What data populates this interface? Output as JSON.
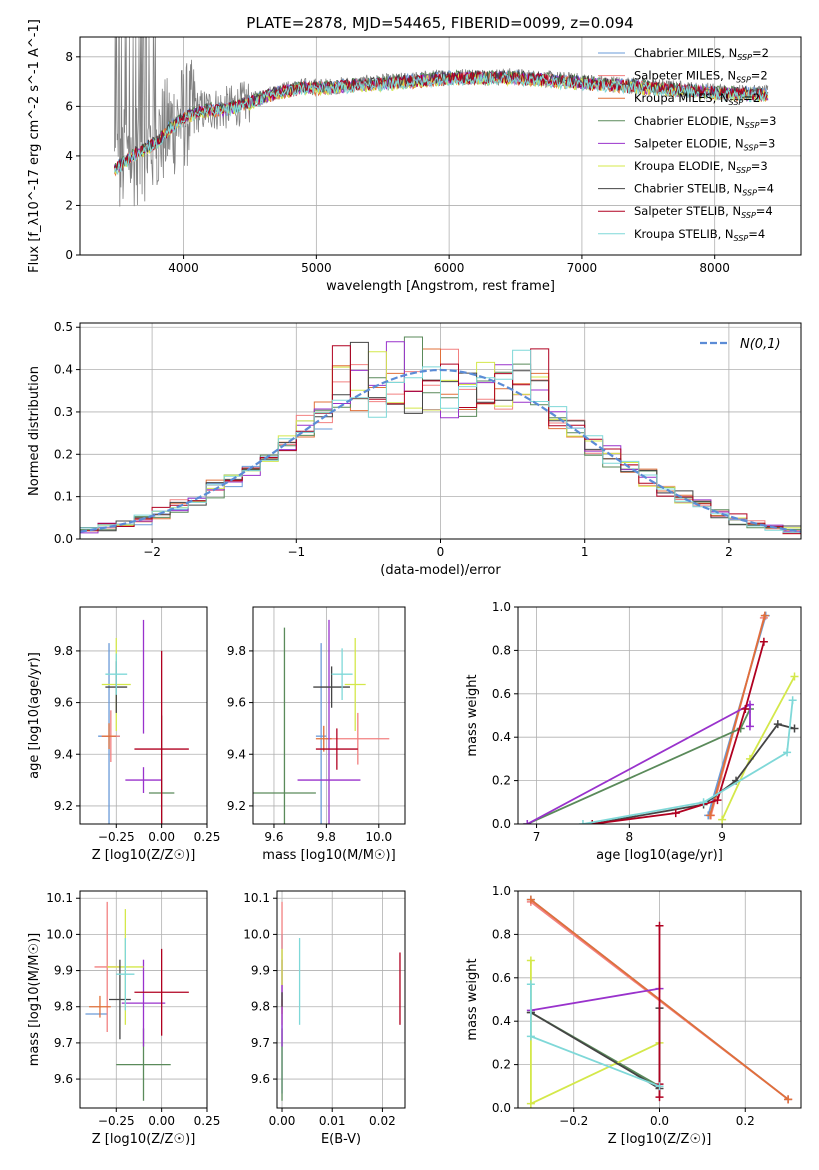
{
  "figure": {
    "title": "PLATE=2878, MJD=54465, FIBERID=0099, z=0.094"
  },
  "models": [
    {
      "name": "Chabrier MILES",
      "nssp": "2",
      "color": "#6a9bd8"
    },
    {
      "name": "Salpeter MILES",
      "nssp": "2",
      "color": "#f28080"
    },
    {
      "name": "Kroupa MILES",
      "nssp": "2",
      "color": "#e0703a"
    },
    {
      "name": "Chabrier ELODIE",
      "nssp": "3",
      "color": "#5a8a5a"
    },
    {
      "name": "Salpeter ELODIE",
      "nssp": "3",
      "color": "#9932cc"
    },
    {
      "name": "Kroupa ELODIE",
      "nssp": "3",
      "color": "#d4e84a"
    },
    {
      "name": "Chabrier STELIB",
      "nssp": "4",
      "color": "#444444"
    },
    {
      "name": "Salpeter STELIB",
      "nssp": "4",
      "color": "#b00020"
    },
    {
      "name": "Kroupa STELIB",
      "nssp": "4",
      "color": "#7fd8d8"
    }
  ],
  "chart_data": [
    {
      "id": "spectrum",
      "type": "line",
      "xlabel": "wavelength [Angstrom, rest frame]",
      "ylabel": "Flux [f_λ10^-17 erg cm^-2 s^-1 A^-1]",
      "xlim": [
        3220,
        8650
      ],
      "ylim": [
        0,
        8.8
      ],
      "xticks": [
        4000,
        5000,
        6000,
        7000,
        8000
      ],
      "yticks": [
        0,
        2,
        4,
        6,
        8
      ],
      "legend_position": "right",
      "data_range": [
        3480,
        8400
      ],
      "data_color": "#808080",
      "continuum": {
        "x": [
          3480,
          3600,
          3700,
          3800,
          3900,
          4000,
          4100,
          4200,
          4300,
          4500,
          4700,
          4900,
          5100,
          5300,
          5600,
          6000,
          6500,
          7000,
          7500,
          8000,
          8400
        ],
        "y": [
          3.5,
          4.0,
          4.3,
          4.6,
          5.2,
          5.6,
          5.8,
          5.9,
          5.9,
          6.2,
          6.6,
          6.8,
          6.8,
          6.9,
          7.0,
          7.2,
          7.2,
          7.0,
          6.8,
          6.6,
          6.5
        ]
      }
    },
    {
      "id": "residuals",
      "type": "histogram",
      "xlabel": "(data-model)/error",
      "ylabel": "Normed distribution",
      "xlim": [
        -2.5,
        2.5
      ],
      "ylim": [
        0,
        0.51
      ],
      "xticks": [
        -2,
        -1,
        0,
        1,
        2
      ],
      "yticks": [
        0.0,
        0.1,
        0.2,
        0.3,
        0.4,
        0.5
      ],
      "bin_width": 0.125,
      "legend_label": "N(0,1)",
      "legend_position": "top-right",
      "gaussian_color": "#5b8cd6",
      "peak_bins": [
        0.4,
        0.43,
        0.34,
        0.36,
        0.42,
        0.38,
        0.48,
        0.36,
        0.34,
        0.32,
        0.38
      ]
    },
    {
      "id": "age_vs_Z",
      "type": "errorbar",
      "xlabel": "Z [log10(Z/Z☉)]",
      "ylabel": "age [log10(age/yr)]",
      "xlim": [
        -0.45,
        0.25
      ],
      "ylim": [
        9.13,
        9.97
      ],
      "xticks": [
        -0.25,
        0.0,
        0.25
      ],
      "yticks": [
        9.2,
        9.4,
        9.6,
        9.8
      ],
      "points": [
        {
          "x": -0.29,
          "y": 9.47,
          "xerr": 0.06,
          "yerr": 0.36,
          "c": 0
        },
        {
          "x": -0.28,
          "y": 9.47,
          "xerr": 0.05,
          "yerr": 0.1,
          "c": 1
        },
        {
          "x": -0.29,
          "y": 9.47,
          "xerr": 0.04,
          "yerr": 0.05,
          "c": 2
        },
        {
          "x": 0.0,
          "y": 9.25,
          "xerr": 0.07,
          "yerr": 0.3,
          "c": 3
        },
        {
          "x": -0.1,
          "y": 9.3,
          "xerr": 0.1,
          "yerr": 0.05,
          "c": 4
        },
        {
          "x": -0.1,
          "y": 9.7,
          "xerr": 0.0,
          "yerr": 0.22,
          "c": 4
        },
        {
          "x": -0.25,
          "y": 9.67,
          "xerr": 0.08,
          "yerr": 0.18,
          "c": 5
        },
        {
          "x": -0.25,
          "y": 9.66,
          "xerr": 0.06,
          "yerr": 0.1,
          "c": 6
        },
        {
          "x": 0.0,
          "y": 9.42,
          "xerr": 0.15,
          "yerr": 0.38,
          "c": 7
        },
        {
          "x": -0.25,
          "y": 9.71,
          "xerr": 0.06,
          "yerr": 0.08,
          "c": 8
        }
      ]
    },
    {
      "id": "age_vs_mass",
      "type": "errorbar",
      "xlabel": "mass [log10(M/M☉)]",
      "ylabel": "",
      "xlim": [
        9.52,
        10.1
      ],
      "ylim": [
        9.13,
        9.97
      ],
      "xticks": [
        9.6,
        9.8,
        10.0
      ],
      "yticks": [
        9.2,
        9.4,
        9.6,
        9.8
      ],
      "points": [
        {
          "x": 9.78,
          "y": 9.47,
          "xerr": 0.02,
          "yerr": 0.36,
          "c": 0
        },
        {
          "x": 9.92,
          "y": 9.46,
          "xerr": 0.12,
          "yerr": 0.1,
          "c": 1
        },
        {
          "x": 9.79,
          "y": 9.46,
          "xerr": 0.03,
          "yerr": 0.05,
          "c": 2
        },
        {
          "x": 9.64,
          "y": 9.25,
          "xerr": 0.12,
          "yerr": 0.64,
          "c": 3
        },
        {
          "x": 9.81,
          "y": 9.3,
          "xerr": 0.12,
          "yerr": 0.62,
          "c": 4
        },
        {
          "x": 9.91,
          "y": 9.67,
          "xerr": 0.04,
          "yerr": 0.18,
          "c": 5
        },
        {
          "x": 9.82,
          "y": 9.66,
          "xerr": 0.07,
          "yerr": 0.08,
          "c": 6
        },
        {
          "x": 9.84,
          "y": 9.42,
          "xerr": 0.08,
          "yerr": 0.08,
          "c": 7
        },
        {
          "x": 9.86,
          "y": 9.71,
          "xerr": 0.04,
          "yerr": 0.1,
          "c": 8
        }
      ]
    },
    {
      "id": "mass_weight_vs_age",
      "type": "line",
      "xlabel": "age [log10(age/yr)]",
      "ylabel": "mass weight",
      "xlim": [
        6.8,
        9.85
      ],
      "ylim": [
        0,
        1.0
      ],
      "xticks": [
        7,
        8,
        9
      ],
      "yticks": [
        0.0,
        0.2,
        0.4,
        0.6,
        0.8,
        1.0
      ],
      "series": [
        {
          "c": 0,
          "x": [
            8.85,
            9.47
          ],
          "y": [
            0.04,
            0.96
          ]
        },
        {
          "c": 1,
          "x": [
            8.88,
            9.45
          ],
          "y": [
            0.04,
            0.95
          ]
        },
        {
          "c": 2,
          "x": [
            8.87,
            9.46
          ],
          "y": [
            0.04,
            0.96
          ]
        },
        {
          "c": 3,
          "x": [
            6.9,
            9.2,
            9.3
          ],
          "y": [
            0.0,
            0.44,
            0.53
          ]
        },
        {
          "c": 4,
          "x": [
            6.9,
            9.3,
            9.3
          ],
          "y": [
            0.0,
            0.55,
            0.45
          ]
        },
        {
          "c": 5,
          "x": [
            9.0,
            9.3,
            9.78
          ],
          "y": [
            0.02,
            0.3,
            0.68
          ]
        },
        {
          "c": 6,
          "x": [
            7.6,
            8.8,
            9.15,
            9.6,
            9.78
          ],
          "y": [
            0.0,
            0.09,
            0.2,
            0.46,
            0.44
          ]
        },
        {
          "c": 7,
          "x": [
            7.6,
            8.5,
            8.95,
            9.25,
            9.45
          ],
          "y": [
            0.0,
            0.05,
            0.11,
            0.53,
            0.84
          ]
        },
        {
          "c": 8,
          "x": [
            7.5,
            8.8,
            9.7,
            9.76
          ],
          "y": [
            0.0,
            0.1,
            0.33,
            0.57
          ]
        }
      ]
    },
    {
      "id": "mass_vs_Z",
      "type": "errorbar",
      "xlabel": "Z [log10(Z/Z☉)]",
      "ylabel": "mass [log10(M/M☉)]",
      "xlim": [
        -0.45,
        0.25
      ],
      "ylim": [
        9.52,
        10.12
      ],
      "xticks": [
        -0.25,
        0.0,
        0.25
      ],
      "yticks": [
        9.6,
        9.7,
        9.8,
        9.9,
        10.0,
        10.1
      ],
      "points": [
        {
          "x": -0.36,
          "y": 9.78,
          "xerr": 0.06,
          "yerr": 0.0,
          "c": 0
        },
        {
          "x": -0.3,
          "y": 9.91,
          "xerr": 0.07,
          "yerr": 0.18,
          "c": 1
        },
        {
          "x": -0.34,
          "y": 9.8,
          "xerr": 0.06,
          "yerr": 0.03,
          "c": 2
        },
        {
          "x": -0.1,
          "y": 9.64,
          "xerr": 0.15,
          "yerr": 0.1,
          "c": 3
        },
        {
          "x": -0.1,
          "y": 9.81,
          "xerr": 0.12,
          "yerr": 0.12,
          "c": 4
        },
        {
          "x": -0.2,
          "y": 9.91,
          "xerr": 0.1,
          "yerr": 0.16,
          "c": 5
        },
        {
          "x": -0.23,
          "y": 9.82,
          "xerr": 0.06,
          "yerr": 0.11,
          "c": 6
        },
        {
          "x": 0.0,
          "y": 9.84,
          "xerr": 0.15,
          "yerr": 0.12,
          "c": 7
        },
        {
          "x": -0.2,
          "y": 9.89,
          "xerr": 0.05,
          "yerr": 0.1,
          "c": 8
        }
      ]
    },
    {
      "id": "mass_vs_ebv",
      "type": "errorbar",
      "xlabel": "E(B-V)",
      "ylabel": "",
      "xlim": [
        -0.001,
        0.0245
      ],
      "ylim": [
        9.52,
        10.12
      ],
      "xticks": [
        0.0,
        0.01,
        0.02
      ],
      "yticks": [
        9.6,
        9.7,
        9.8,
        9.9,
        10.0,
        10.1
      ],
      "points": [
        {
          "x": 0.0,
          "y": 9.78,
          "xerr": 0.0,
          "yerr": 0.22,
          "c": 0
        },
        {
          "x": 0.0,
          "y": 9.92,
          "xerr": 0.0,
          "yerr": 0.17,
          "c": 1
        },
        {
          "x": 0.0,
          "y": 9.8,
          "xerr": 0.0,
          "yerr": 0.02,
          "c": 2
        },
        {
          "x": 0.0,
          "y": 9.64,
          "xerr": 0.0,
          "yerr": 0.1,
          "c": 3
        },
        {
          "x": 0.0,
          "y": 9.81,
          "xerr": 0.0,
          "yerr": 0.12,
          "c": 4
        },
        {
          "x": 0.0,
          "y": 9.91,
          "xerr": 0.0,
          "yerr": 0.05,
          "c": 5
        },
        {
          "x": 0.0,
          "y": 9.82,
          "xerr": 0.0,
          "yerr": 0.02,
          "c": 6
        },
        {
          "x": 0.0235,
          "y": 9.85,
          "xerr": 0.0,
          "yerr": 0.1,
          "c": 7
        },
        {
          "x": 0.0035,
          "y": 9.87,
          "xerr": 0.0,
          "yerr": 0.12,
          "c": 8
        }
      ]
    },
    {
      "id": "mass_weight_vs_Z",
      "type": "line",
      "xlabel": "Z [log10(Z/Z☉)]",
      "ylabel": "mass weight",
      "xlim": [
        -0.33,
        0.33
      ],
      "ylim": [
        0,
        1.0
      ],
      "xticks": [
        -0.2,
        0.0,
        0.2
      ],
      "yticks": [
        0.0,
        0.2,
        0.4,
        0.6,
        0.8,
        1.0
      ],
      "series": [
        {
          "c": 0,
          "x": [
            -0.3,
            0.3
          ],
          "y": [
            0.96,
            0.04
          ]
        },
        {
          "c": 1,
          "x": [
            -0.3,
            0.3
          ],
          "y": [
            0.95,
            0.04
          ]
        },
        {
          "c": 2,
          "x": [
            -0.3,
            0.3
          ],
          "y": [
            0.96,
            0.04
          ]
        },
        {
          "c": 3,
          "x": [
            -0.3,
            0.0
          ],
          "y": [
            0.44,
            0.1
          ]
        },
        {
          "c": 4,
          "x": [
            -0.3,
            0.0
          ],
          "y": [
            0.45,
            0.55
          ]
        },
        {
          "c": 5,
          "x": [
            -0.3,
            -0.3,
            0.0
          ],
          "y": [
            0.68,
            0.02,
            0.3
          ]
        },
        {
          "c": 6,
          "x": [
            -0.3,
            0.0,
            0.0
          ],
          "y": [
            0.44,
            0.09,
            0.46
          ]
        },
        {
          "c": 7,
          "x": [
            0.0,
            0.0,
            0.0
          ],
          "y": [
            0.11,
            0.84,
            0.05
          ]
        },
        {
          "c": 8,
          "x": [
            -0.3,
            -0.3,
            0.0
          ],
          "y": [
            0.57,
            0.33,
            0.1
          ]
        }
      ]
    }
  ]
}
